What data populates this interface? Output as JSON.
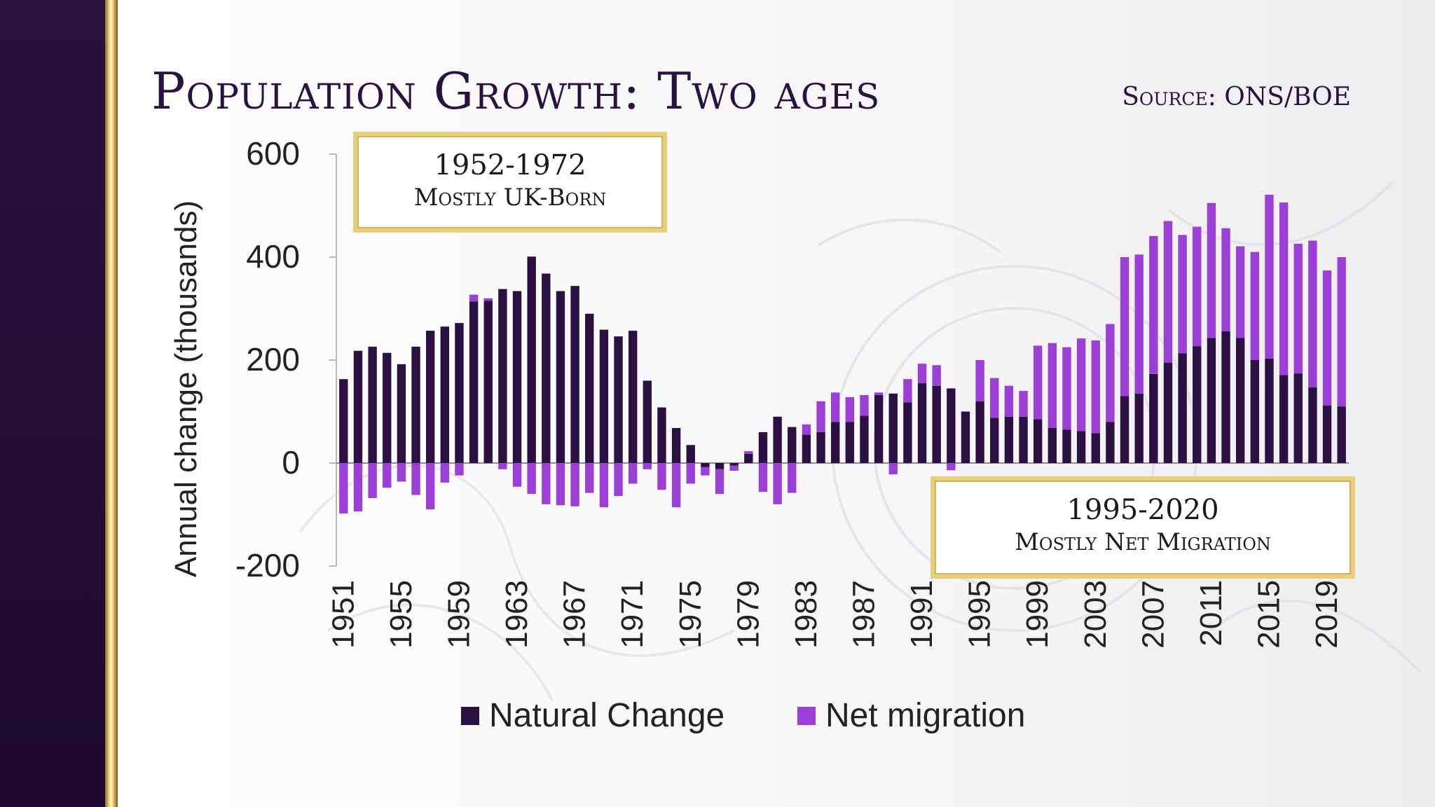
{
  "header": {
    "title": "Population Growth: Two ages",
    "source": "Source: ONS/BOE"
  },
  "callouts": {
    "left": {
      "years": "1952-1972",
      "desc": "Mostly UK-Born"
    },
    "right": {
      "years": "1995-2020",
      "desc": "Mostly Net Migration"
    }
  },
  "colors": {
    "natural": "#2b1142",
    "migration": "#9b3fd6",
    "sidebar": "#2b1140",
    "gold": "#e7cf7a"
  },
  "chart_data": {
    "type": "bar",
    "stacked": true,
    "title": "Population Growth: Two ages",
    "ylabel": "Annual change (thousands)",
    "xlabel": "",
    "ylim": [
      -200,
      600
    ],
    "yticks": [
      600,
      400,
      200,
      0,
      -200
    ],
    "ytick_labels": [
      "600",
      "400",
      "200",
      "0",
      "-200"
    ],
    "categories": [
      1951,
      1952,
      1953,
      1954,
      1955,
      1956,
      1957,
      1958,
      1959,
      1960,
      1961,
      1962,
      1963,
      1964,
      1965,
      1966,
      1967,
      1968,
      1969,
      1970,
      1971,
      1972,
      1973,
      1974,
      1975,
      1976,
      1977,
      1978,
      1979,
      1980,
      1981,
      1982,
      1983,
      1984,
      1985,
      1986,
      1987,
      1988,
      1989,
      1990,
      1991,
      1992,
      1993,
      1994,
      1995,
      1996,
      1997,
      1998,
      1999,
      2000,
      2001,
      2002,
      2003,
      2004,
      2005,
      2006,
      2007,
      2008,
      2009,
      2010,
      2011,
      2012,
      2013,
      2014,
      2015,
      2016,
      2017,
      2018,
      2019,
      2020
    ],
    "xtick_labels": [
      "1951",
      "1955",
      "1959",
      "1963",
      "1967",
      "1971",
      "1975",
      "1979",
      "1983",
      "1987",
      "1991",
      "1995",
      "1999",
      "2003",
      "2007",
      "2011",
      "2015",
      "2019"
    ],
    "series": [
      {
        "name": "Natural Change",
        "values": [
          163,
          218,
          226,
          214,
          192,
          226,
          257,
          265,
          272,
          314,
          315,
          338,
          334,
          401,
          368,
          334,
          344,
          290,
          259,
          246,
          257,
          160,
          108,
          68,
          35,
          -8,
          -12,
          -5,
          18,
          60,
          90,
          70,
          55,
          60,
          80,
          80,
          92,
          132,
          135,
          118,
          155,
          150,
          145,
          100,
          120,
          88,
          90,
          90,
          85,
          68,
          65,
          62,
          58,
          80,
          130,
          135,
          173,
          195,
          213,
          227,
          243,
          256,
          243,
          200,
          203,
          171,
          174,
          147,
          112,
          110
        ]
      },
      {
        "name": "Net migration",
        "values": [
          -98,
          -94,
          -68,
          -48,
          -36,
          -62,
          -90,
          -38,
          -24,
          13,
          5,
          -12,
          -46,
          -60,
          -80,
          -82,
          -84,
          -58,
          -86,
          -64,
          -40,
          -12,
          -52,
          -86,
          -40,
          -16,
          -48,
          -10,
          5,
          -56,
          -80,
          -58,
          20,
          60,
          57,
          48,
          40,
          5,
          -22,
          45,
          38,
          40,
          -14,
          0,
          80,
          77,
          60,
          50,
          143,
          165,
          160,
          180,
          180,
          190,
          270,
          270,
          268,
          275,
          230,
          232,
          262,
          200,
          178,
          210,
          318,
          335,
          252,
          285,
          262,
          290
        ]
      }
    ],
    "legend": [
      "Natural Change",
      "Net migration"
    ],
    "legend_position": "bottom"
  }
}
